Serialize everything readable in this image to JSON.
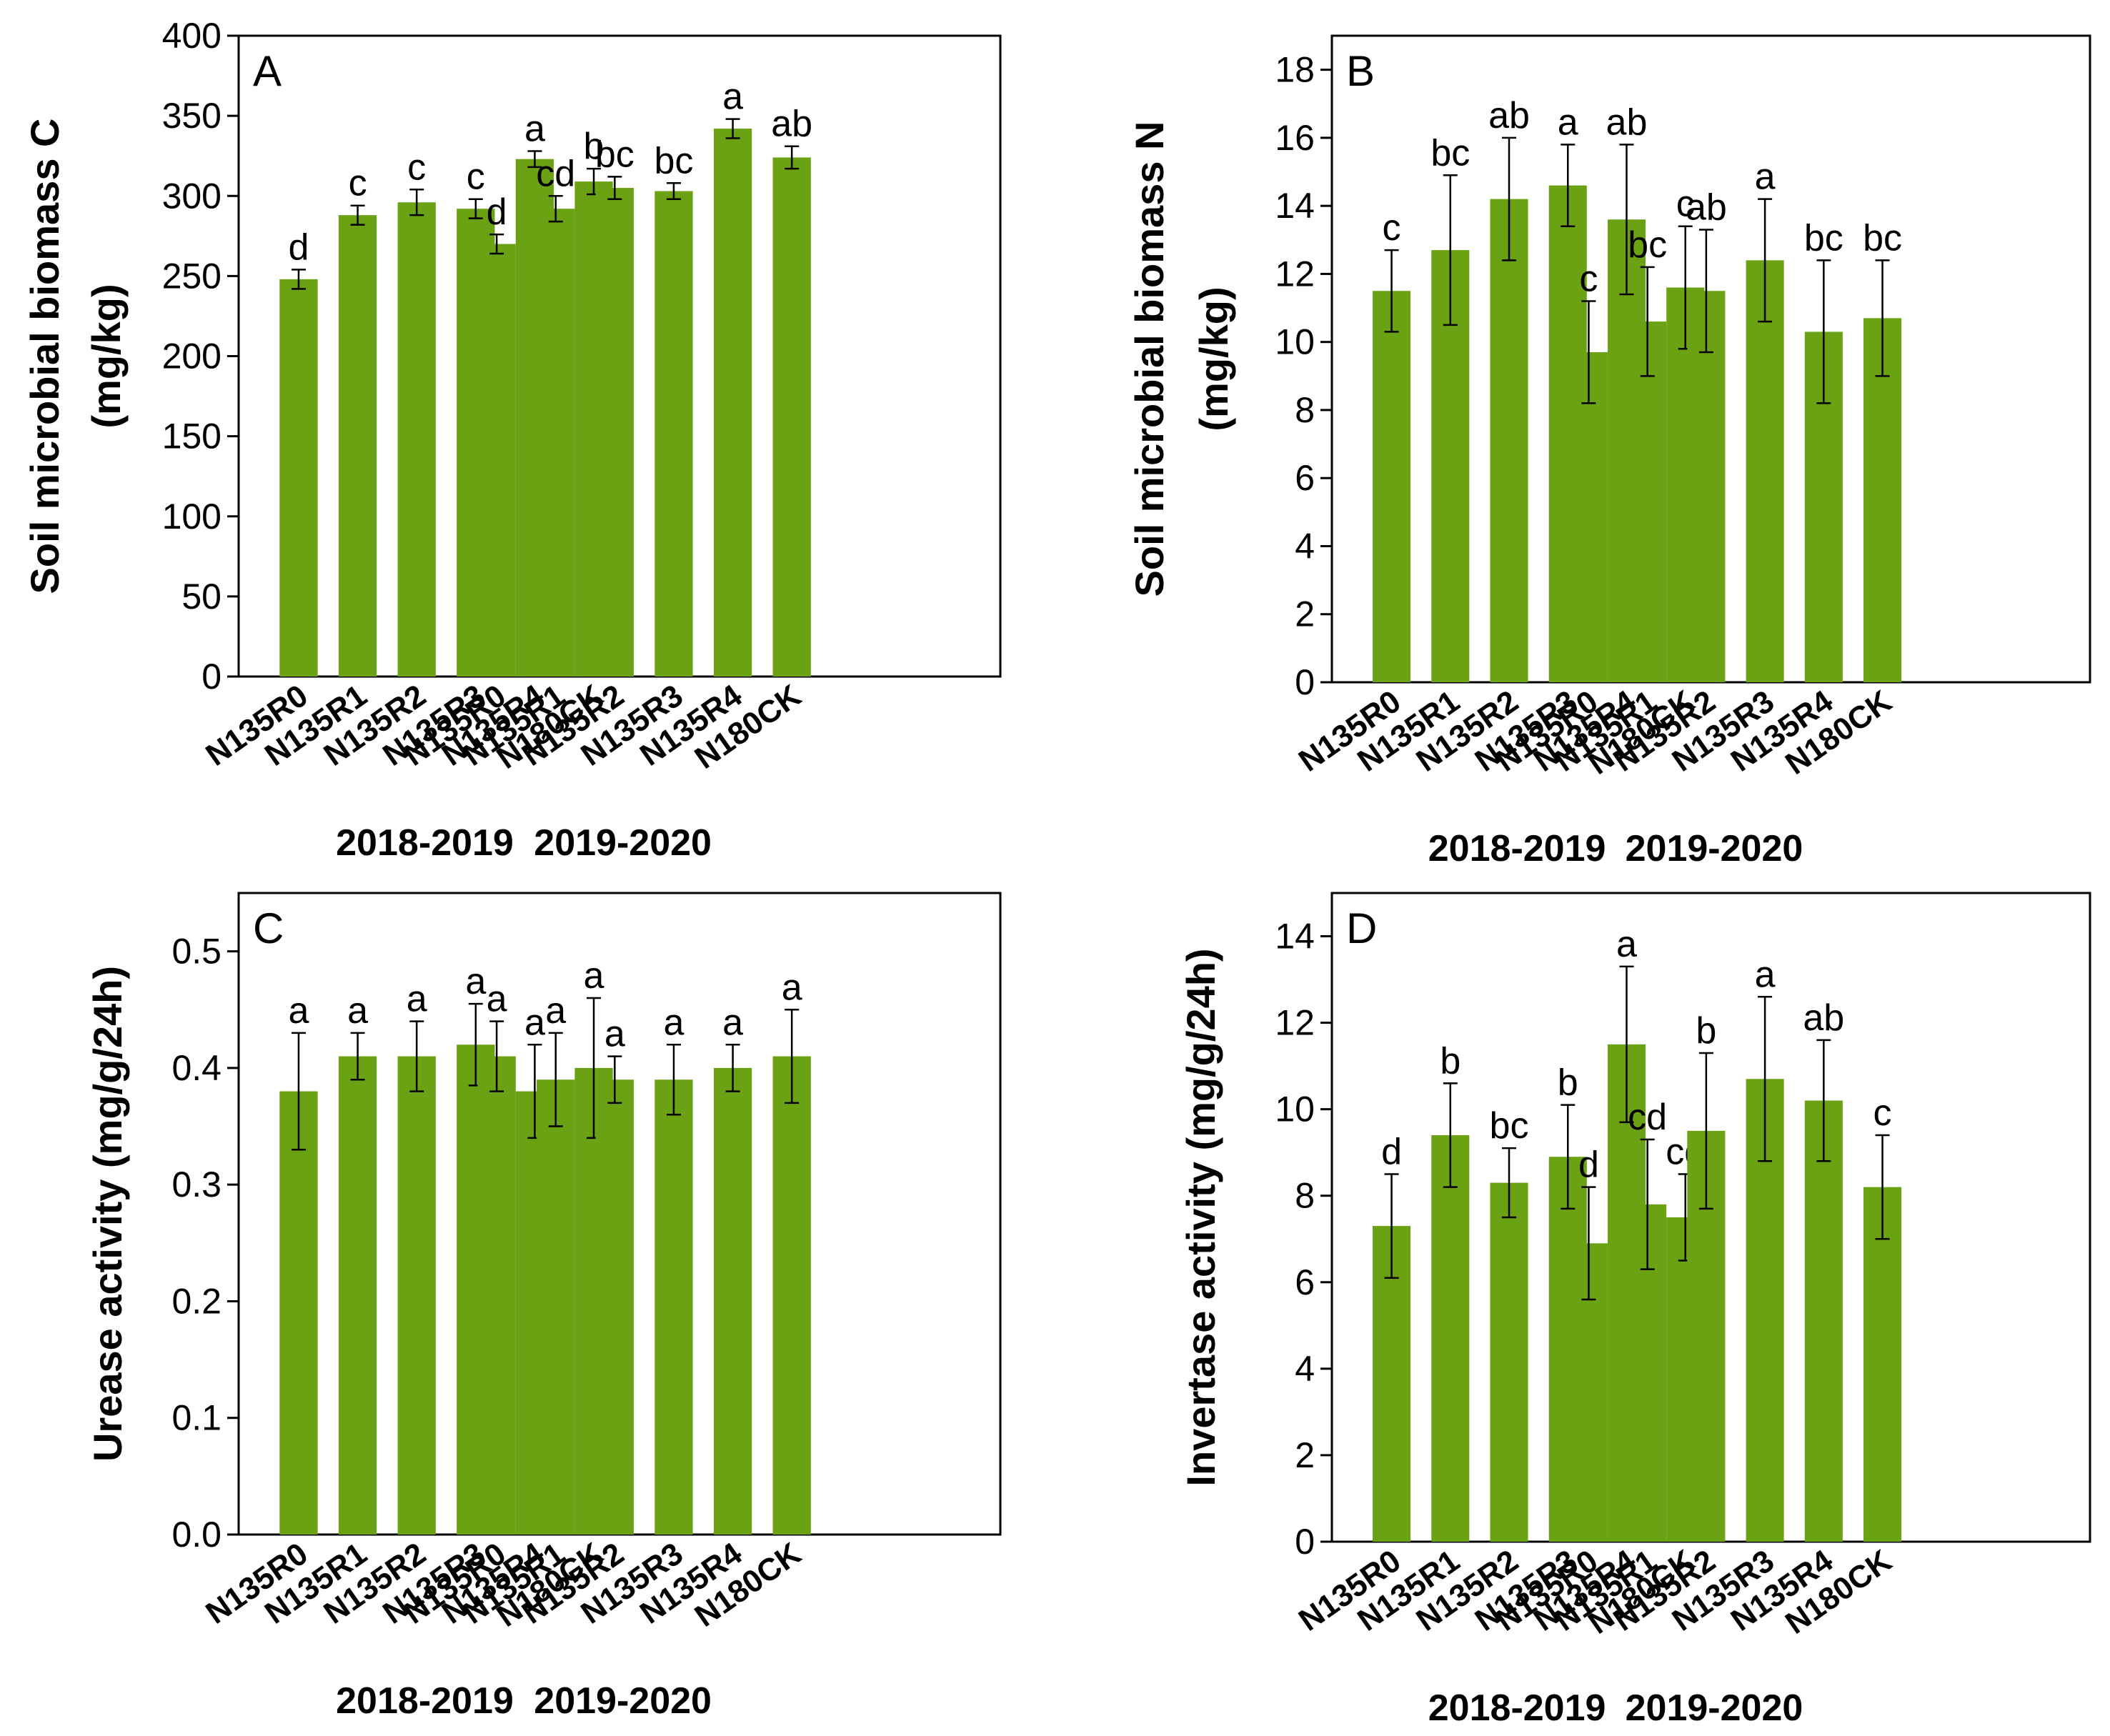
{
  "figure": {
    "bar_color": "#6aa214",
    "groups": [
      "2018-2019",
      "2019-2020"
    ]
  },
  "chart_data": [
    {
      "type": "bar",
      "panel": "A",
      "ylabel_lines": [
        "Soil microbial biomass C",
        "(mg/kg)"
      ],
      "ylim": [
        0,
        400
      ],
      "yticks": [
        0,
        50,
        100,
        150,
        200,
        250,
        300,
        350,
        400
      ],
      "ytick_labels": [
        "0",
        "50",
        "100",
        "150",
        "200",
        "250",
        "300",
        "350",
        "400"
      ],
      "categories": [
        "N135R0",
        "N135R1",
        "N135R2",
        "N135R3",
        "N135R4",
        "N180CK"
      ],
      "series": [
        {
          "name": "2018-2019",
          "values": [
            248,
            288,
            296,
            292,
            323,
            309
          ],
          "errors": [
            6,
            6,
            8,
            6,
            5,
            8
          ],
          "labels": [
            "d",
            "c",
            "c",
            "c",
            "a",
            "b"
          ]
        },
        {
          "name": "2019-2020",
          "values": [
            270,
            292,
            305,
            303,
            342,
            324
          ],
          "errors": [
            6,
            8,
            7,
            5,
            6,
            7
          ],
          "labels": [
            "d",
            "cd",
            "bc",
            "bc",
            "a",
            "ab"
          ]
        }
      ]
    },
    {
      "type": "bar",
      "panel": "B",
      "ylabel_lines": [
        "Soil microbial biomass N",
        "(mg/kg)"
      ],
      "ylim": [
        0,
        19
      ],
      "yticks": [
        0,
        2,
        4,
        6,
        8,
        10,
        12,
        14,
        16,
        18
      ],
      "ytick_labels": [
        "0",
        "2",
        "4",
        "6",
        "8",
        "10",
        "12",
        "14",
        "16",
        "18"
      ],
      "categories": [
        "N135R0",
        "N135R1",
        "N135R2",
        "N135R3",
        "N135R4",
        "N180CK"
      ],
      "series": [
        {
          "name": "2018-2019",
          "values": [
            11.5,
            12.7,
            14.2,
            14.6,
            13.6,
            11.6
          ],
          "errors": [
            1.2,
            2.2,
            1.8,
            1.2,
            2.2,
            1.8
          ],
          "labels": [
            "c",
            "bc",
            "ab",
            "a",
            "ab",
            "c"
          ]
        },
        {
          "name": "2019-2020",
          "values": [
            9.7,
            10.6,
            11.5,
            12.4,
            10.3,
            10.7
          ],
          "errors": [
            1.5,
            1.6,
            1.8,
            1.8,
            2.1,
            1.7
          ],
          "labels": [
            "c",
            "bc",
            "ab",
            "a",
            "bc",
            "bc"
          ]
        }
      ]
    },
    {
      "type": "bar",
      "panel": "C",
      "ylabel_lines": [
        "Urease activity  (mg/g/24h)"
      ],
      "ylim": [
        0,
        0.55
      ],
      "yticks": [
        0,
        0.1,
        0.2,
        0.3,
        0.4,
        0.5
      ],
      "ytick_labels": [
        "0.0",
        "0.1",
        "0.2",
        "0.3",
        "0.4",
        "0.5"
      ],
      "categories": [
        "N135R0",
        "N135R1",
        "N135R2",
        "N135R3",
        "N135R4",
        "N180CK"
      ],
      "series": [
        {
          "name": "2018-2019",
          "values": [
            0.38,
            0.41,
            0.41,
            0.42,
            0.38,
            0.4
          ],
          "errors": [
            0.05,
            0.02,
            0.03,
            0.035,
            0.04,
            0.06
          ],
          "labels": [
            "a",
            "a",
            "a",
            "a",
            "a",
            "a"
          ]
        },
        {
          "name": "2019-2020",
          "values": [
            0.41,
            0.39,
            0.39,
            0.39,
            0.4,
            0.41
          ],
          "errors": [
            0.03,
            0.04,
            0.02,
            0.03,
            0.02,
            0.04
          ],
          "labels": [
            "a",
            "a",
            "a",
            "a",
            "a",
            "a"
          ]
        }
      ]
    },
    {
      "type": "bar",
      "panel": "D",
      "ylabel_lines": [
        "Invertase activity (mg/g/24h)"
      ],
      "ylim": [
        0,
        15
      ],
      "yticks": [
        0,
        2,
        4,
        6,
        8,
        10,
        12,
        14
      ],
      "ytick_labels": [
        "0",
        "2",
        "4",
        "6",
        "8",
        "10",
        "12",
        "14"
      ],
      "categories": [
        "N135R0",
        "N135R1",
        "N135R2",
        "N135R3",
        "N135R4",
        "N180CK"
      ],
      "series": [
        {
          "name": "2018-2019",
          "values": [
            7.3,
            9.4,
            8.3,
            8.9,
            11.5,
            7.5
          ],
          "errors": [
            1.2,
            1.2,
            0.8,
            1.2,
            1.8,
            1.0
          ],
          "labels": [
            "d",
            "b",
            "bc",
            "b",
            "a",
            "cd"
          ]
        },
        {
          "name": "2019-2020",
          "values": [
            6.9,
            7.8,
            9.5,
            10.7,
            10.2,
            8.2
          ],
          "errors": [
            1.3,
            1.5,
            1.8,
            1.9,
            1.4,
            1.2
          ],
          "labels": [
            "d",
            "cd",
            "b",
            "a",
            "ab",
            "c"
          ]
        }
      ]
    }
  ]
}
